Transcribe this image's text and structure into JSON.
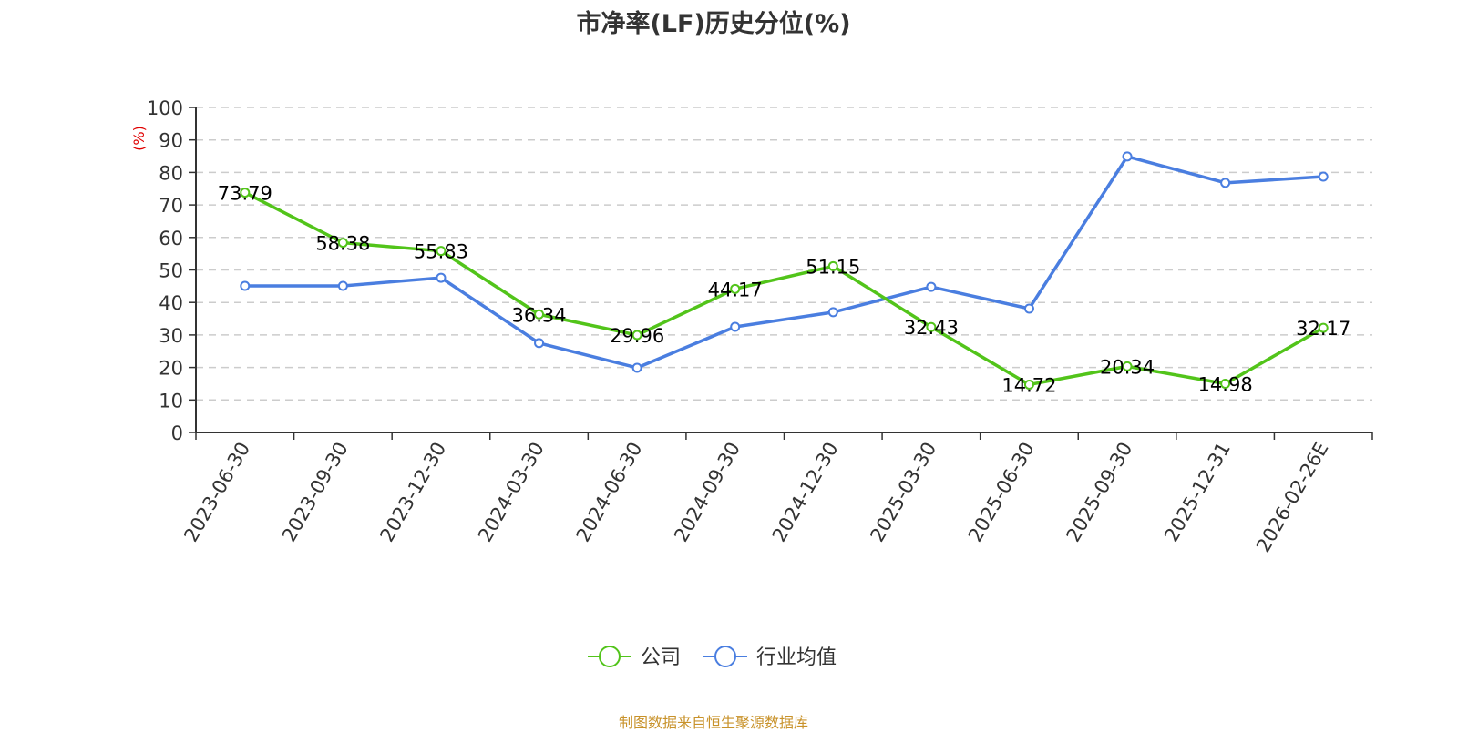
{
  "title": "市净率(LF)历史分位(%)",
  "source": "制图数据来自恒生聚源数据库",
  "colors": {
    "company": "#52c41a",
    "industry": "#4a7ee0",
    "axis": "#333333",
    "grid": "#cccccc",
    "unit": "#e00000",
    "source": "#c8922a"
  },
  "chart_data": {
    "type": "line",
    "title": "市净率(LF)历史分位(%)",
    "xlabel": "",
    "ylabel": "(%)",
    "ylim": [
      0,
      100
    ],
    "yticks": [
      0,
      10,
      20,
      30,
      40,
      50,
      60,
      70,
      80,
      90,
      100
    ],
    "grid": true,
    "legend_position": "bottom",
    "categories": [
      "2023-06-30",
      "2023-09-30",
      "2023-12-30",
      "2024-03-30",
      "2024-06-30",
      "2024-09-30",
      "2024-12-30",
      "2025-03-30",
      "2025-06-30",
      "2025-09-30",
      "2025-12-31",
      "2026-02-26E"
    ],
    "series": [
      {
        "name": "公司",
        "values": [
          73.79,
          58.38,
          55.83,
          36.34,
          29.96,
          44.17,
          51.15,
          32.43,
          14.72,
          20.34,
          14.98,
          32.17
        ],
        "labeled": true
      },
      {
        "name": "行业均值",
        "values": [
          45.1,
          45.1,
          47.6,
          27.5,
          19.9,
          32.5,
          37.0,
          44.8,
          38.1,
          84.9,
          76.8,
          78.7
        ],
        "labeled": false
      }
    ]
  }
}
